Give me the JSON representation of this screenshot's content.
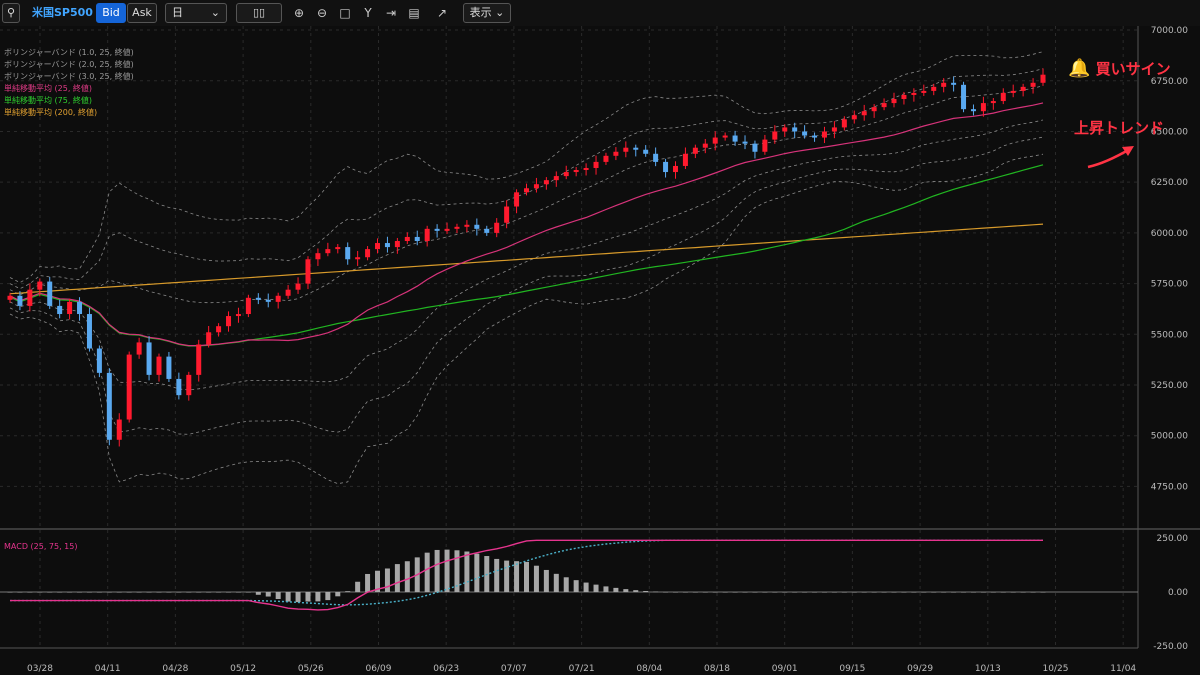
{
  "toolbar": {
    "symbol": "米国SP500",
    "bid": "Bid",
    "ask": "Ask",
    "period": "日",
    "display": "表示"
  },
  "colors": {
    "up": "#ff1a2e",
    "down": "#5aa9f0",
    "ma25": "#d6337a",
    "ma75": "#21b521",
    "ma200": "#d79a2b",
    "bb": "#8a8a8a",
    "macd": "#e6348e",
    "signal": "#4ab0c8",
    "hist": "#a8a8a8",
    "annot": "#ff3344"
  },
  "legend": [
    {
      "text": "ボリンジャーバンド (1.0, 25, 終値)",
      "color": "#9a9a9a"
    },
    {
      "text": "ボリンジャーバンド (2.0, 25, 終値)",
      "color": "#9a9a9a"
    },
    {
      "text": "ボリンジャーバンド (3.0, 25, 終値)",
      "color": "#9a9a9a"
    },
    {
      "text": "単純移動平均 (25, 終値)",
      "color": "#e03a86"
    },
    {
      "text": "単純移動平均 (75, 終値)",
      "color": "#2fd02f"
    },
    {
      "text": "単純移動平均 (200, 終値)",
      "color": "#e0a030"
    }
  ],
  "macd_label": "MACD (25, 75, 15)",
  "annotations": {
    "buy_signal": "買いサイン",
    "uptrend": "上昇トレンド"
  },
  "chart_data": {
    "type": "candlestick",
    "x_ticks": [
      "03/28",
      "04/11",
      "04/28",
      "05/12",
      "05/26",
      "06/09",
      "06/23",
      "07/07",
      "07/21",
      "08/04",
      "08/18",
      "09/01",
      "09/15",
      "09/29",
      "10/13",
      "10/25",
      "11/04"
    ],
    "y_ticks": [
      "7000.00",
      "6750.00",
      "6500.00",
      "6250.00",
      "6000.00",
      "5750.00",
      "5500.00",
      "5250.00",
      "5000.00",
      "4750.00"
    ],
    "ylim": [
      4550,
      7020
    ],
    "macd_ticks": [
      "250.00",
      "0.00",
      "-250.00"
    ],
    "macd_ylim": [
      -260,
      260
    ],
    "close_series": [
      5690,
      5640,
      5720,
      5760,
      5640,
      5600,
      5660,
      5600,
      5430,
      5310,
      4980,
      5080,
      5400,
      5460,
      5300,
      5390,
      5280,
      5200,
      5300,
      5450,
      5510,
      5540,
      5590,
      5600,
      5680,
      5670,
      5660,
      5690,
      5720,
      5750,
      5870,
      5900,
      5920,
      5930,
      5870,
      5880,
      5920,
      5950,
      5930,
      5960,
      5980,
      5960,
      6020,
      6010,
      6020,
      6030,
      6040,
      6020,
      6000,
      6050,
      6130,
      6200,
      6220,
      6240,
      6260,
      6280,
      6300,
      6310,
      6320,
      6350,
      6380,
      6400,
      6420,
      6410,
      6390,
      6350,
      6300,
      6330,
      6390,
      6420,
      6440,
      6470,
      6480,
      6450,
      6440,
      6400,
      6460,
      6500,
      6520,
      6500,
      6480,
      6470,
      6500,
      6520,
      6560,
      6580,
      6600,
      6620,
      6640,
      6660,
      6680,
      6690,
      6700,
      6720,
      6740,
      6730,
      6610,
      6600,
      6640,
      6650,
      6690,
      6700,
      6720,
      6740,
      6780
    ]
  }
}
